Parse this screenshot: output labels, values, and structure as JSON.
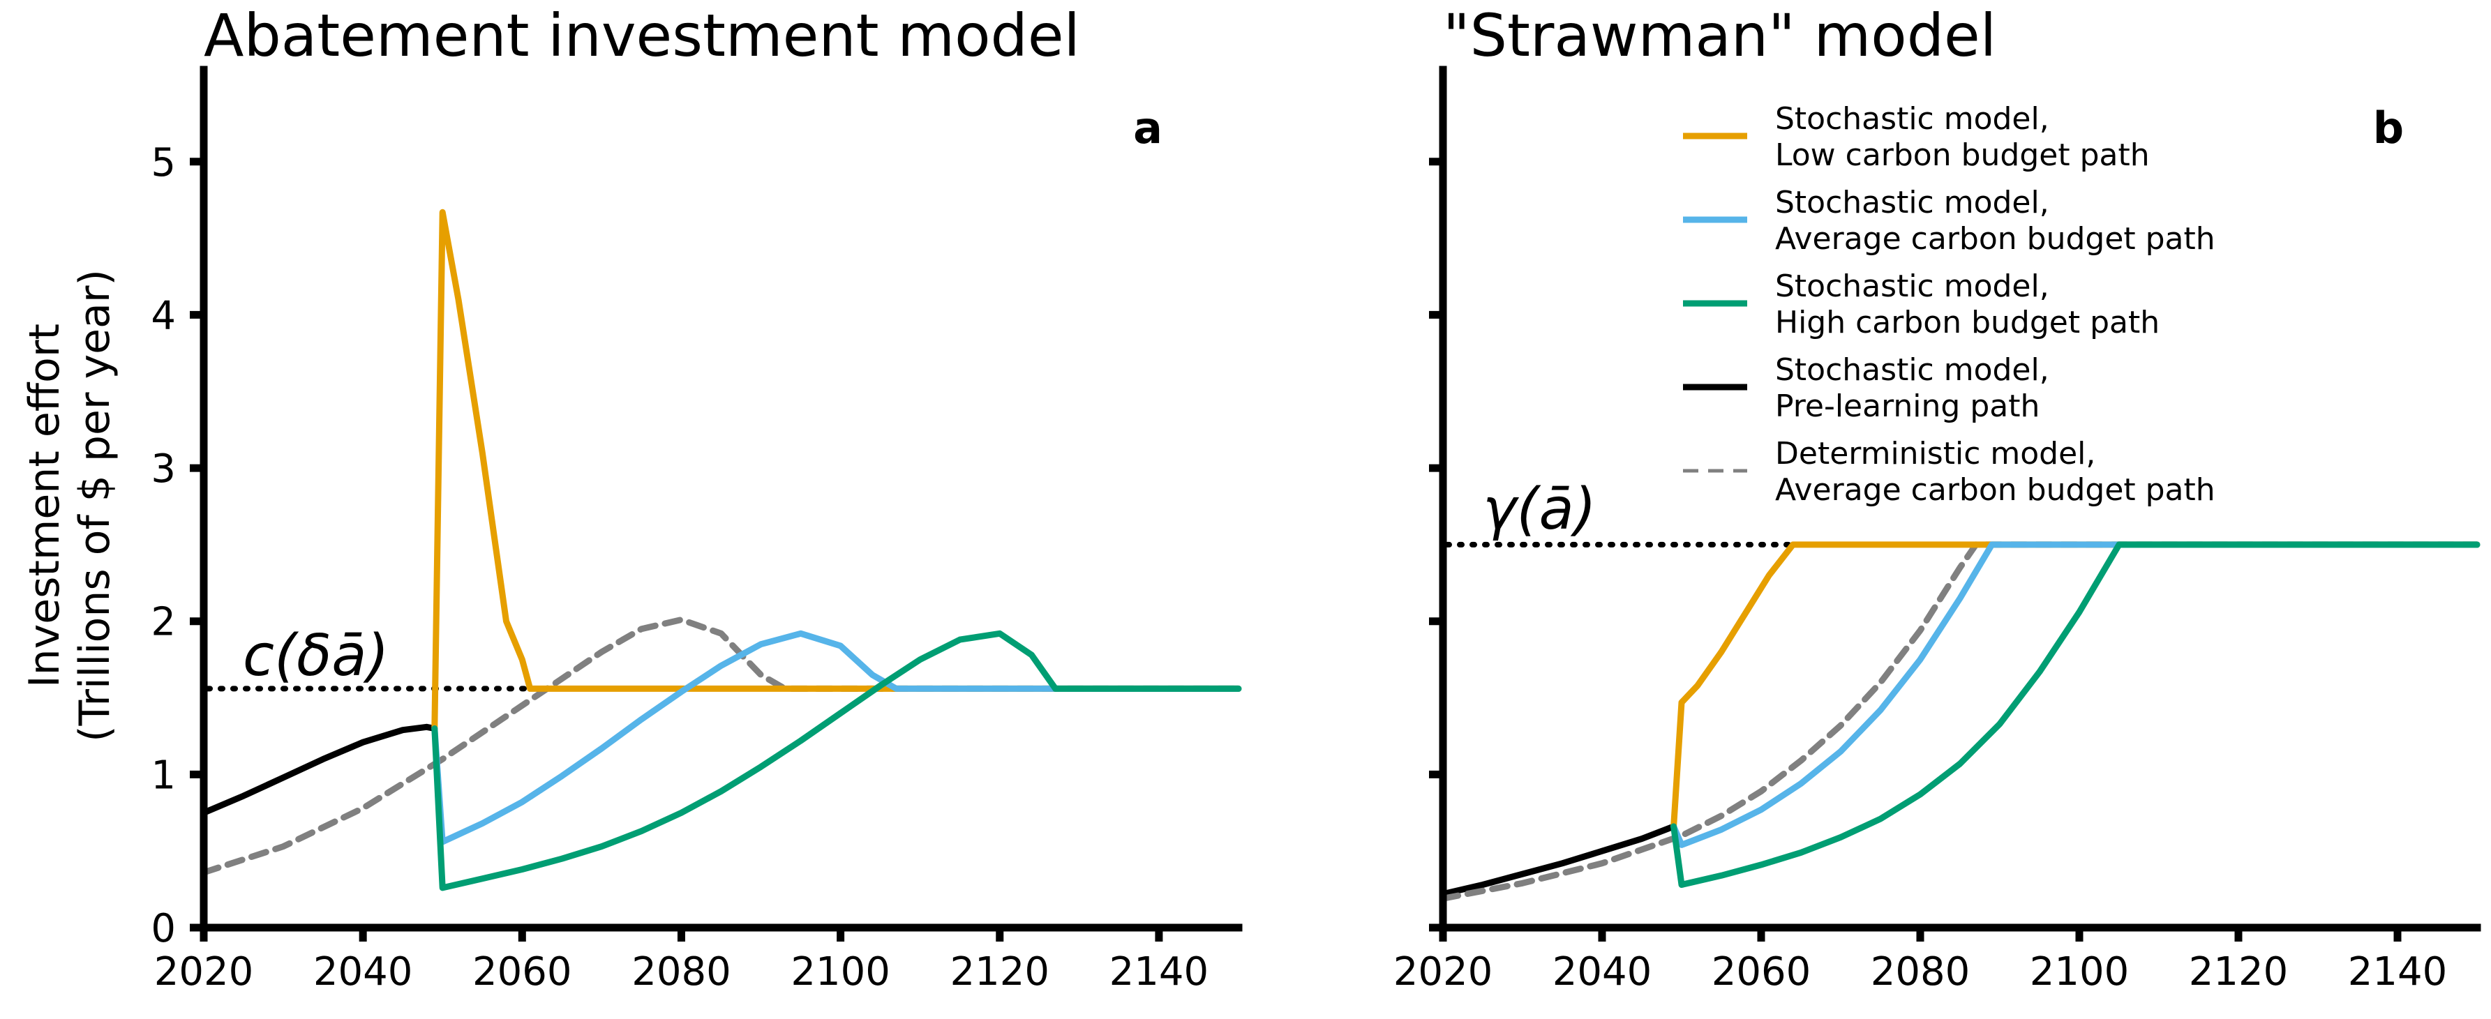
{
  "colors": {
    "low": "#E69F00",
    "average": "#56B4E9",
    "high": "#009E73",
    "pre": "#000000",
    "deterministic": "#808080"
  },
  "ylabel_lines": [
    "Investment effort",
    "(Trillions of $ per year)"
  ],
  "chart_data": [
    {
      "type": "line",
      "title": "Abatement investment model",
      "panel_label": "a",
      "xlim": [
        2020,
        2150
      ],
      "ylim": [
        0,
        5.6
      ],
      "xticks": [
        2020,
        2040,
        2060,
        2080,
        2100,
        2120,
        2140
      ],
      "yticks": [
        0,
        1,
        2,
        3,
        4,
        5
      ],
      "annotation": {
        "text": "c(δā)",
        "level": 1.56
      },
      "series": [
        {
          "key": "pre",
          "dash": "none",
          "x": [
            2020,
            2025,
            2030,
            2035,
            2040,
            2045,
            2048,
            2049
          ],
          "y": [
            0.75,
            0.86,
            0.98,
            1.1,
            1.21,
            1.29,
            1.31,
            1.3
          ]
        },
        {
          "key": "deterministic",
          "dash": "22 14",
          "x": [
            2020,
            2030,
            2040,
            2050,
            2060,
            2070,
            2075,
            2080,
            2085,
            2090,
            2093,
            2100,
            2150
          ],
          "y": [
            0.36,
            0.53,
            0.78,
            1.1,
            1.45,
            1.8,
            1.95,
            2.01,
            1.92,
            1.65,
            1.56,
            1.56,
            1.56
          ]
        },
        {
          "key": "low",
          "dash": "none",
          "x": [
            2049,
            2050,
            2052,
            2055,
            2058,
            2060,
            2061,
            2070,
            2100,
            2150
          ],
          "y": [
            1.3,
            4.67,
            4.1,
            3.1,
            2.0,
            1.75,
            1.56,
            1.56,
            1.56,
            1.56
          ]
        },
        {
          "key": "average",
          "dash": "none",
          "x": [
            2049,
            2050,
            2055,
            2060,
            2065,
            2070,
            2075,
            2080,
            2085,
            2090,
            2095,
            2100,
            2104,
            2107,
            2150
          ],
          "y": [
            1.3,
            0.56,
            0.68,
            0.82,
            0.99,
            1.17,
            1.36,
            1.54,
            1.71,
            1.85,
            1.92,
            1.84,
            1.65,
            1.56,
            1.56
          ]
        },
        {
          "key": "high",
          "dash": "none",
          "x": [
            2049,
            2050,
            2055,
            2060,
            2065,
            2070,
            2075,
            2080,
            2085,
            2090,
            2095,
            2100,
            2105,
            2110,
            2115,
            2120,
            2124,
            2127,
            2150
          ],
          "y": [
            1.3,
            0.26,
            0.32,
            0.38,
            0.45,
            0.53,
            0.63,
            0.75,
            0.89,
            1.05,
            1.22,
            1.4,
            1.58,
            1.75,
            1.88,
            1.92,
            1.78,
            1.56,
            1.56
          ]
        }
      ]
    },
    {
      "type": "line",
      "title": "\"Strawman\" model",
      "panel_label": "b",
      "xlim": [
        2020,
        2150
      ],
      "ylim": [
        0,
        5.6
      ],
      "xticks": [
        2020,
        2040,
        2060,
        2080,
        2100,
        2120,
        2140
      ],
      "yticks": [
        0,
        1,
        2,
        3,
        4,
        5
      ],
      "annotation": {
        "text": "γ(ā)",
        "level": 2.5
      },
      "series": [
        {
          "key": "pre",
          "dash": "none",
          "x": [
            2020,
            2025,
            2030,
            2035,
            2040,
            2045,
            2049
          ],
          "y": [
            0.22,
            0.28,
            0.35,
            0.42,
            0.5,
            0.58,
            0.66
          ]
        },
        {
          "key": "deterministic",
          "dash": "22 14",
          "x": [
            2020,
            2030,
            2040,
            2050,
            2055,
            2060,
            2065,
            2070,
            2075,
            2080,
            2085,
            2087,
            2090,
            2150
          ],
          "y": [
            0.19,
            0.29,
            0.42,
            0.6,
            0.73,
            0.89,
            1.09,
            1.32,
            1.6,
            1.94,
            2.35,
            2.5,
            2.5,
            2.5
          ]
        },
        {
          "key": "low",
          "dash": "none",
          "x": [
            2049,
            2050,
            2052,
            2055,
            2058,
            2061,
            2064,
            2070,
            2150
          ],
          "y": [
            0.66,
            1.47,
            1.58,
            1.8,
            2.05,
            2.3,
            2.5,
            2.5,
            2.5
          ]
        },
        {
          "key": "average",
          "dash": "none",
          "x": [
            2049,
            2050,
            2055,
            2060,
            2065,
            2070,
            2075,
            2080,
            2085,
            2089,
            2095,
            2150
          ],
          "y": [
            0.66,
            0.54,
            0.64,
            0.77,
            0.94,
            1.15,
            1.42,
            1.75,
            2.15,
            2.5,
            2.5,
            2.5
          ]
        },
        {
          "key": "high",
          "dash": "none",
          "x": [
            2049,
            2050,
            2055,
            2060,
            2065,
            2070,
            2075,
            2080,
            2085,
            2090,
            2095,
            2100,
            2105,
            2150
          ],
          "y": [
            0.66,
            0.28,
            0.34,
            0.41,
            0.49,
            0.59,
            0.71,
            0.87,
            1.07,
            1.33,
            1.67,
            2.06,
            2.5,
            2.5
          ]
        }
      ]
    }
  ],
  "legend": [
    {
      "key": "low",
      "dash": "none",
      "lines": [
        "Stochastic model,",
        "Low carbon budget path"
      ]
    },
    {
      "key": "average",
      "dash": "none",
      "lines": [
        "Stochastic model,",
        "Average carbon budget path"
      ]
    },
    {
      "key": "high",
      "dash": "none",
      "lines": [
        "Stochastic model,",
        "High carbon budget path"
      ]
    },
    {
      "key": "pre",
      "dash": "none",
      "lines": [
        "Stochastic model,",
        "Pre-learning path"
      ]
    },
    {
      "key": "deterministic",
      "dash": "22 14",
      "lines": [
        "Deterministic model,",
        "Average carbon budget path"
      ]
    }
  ]
}
